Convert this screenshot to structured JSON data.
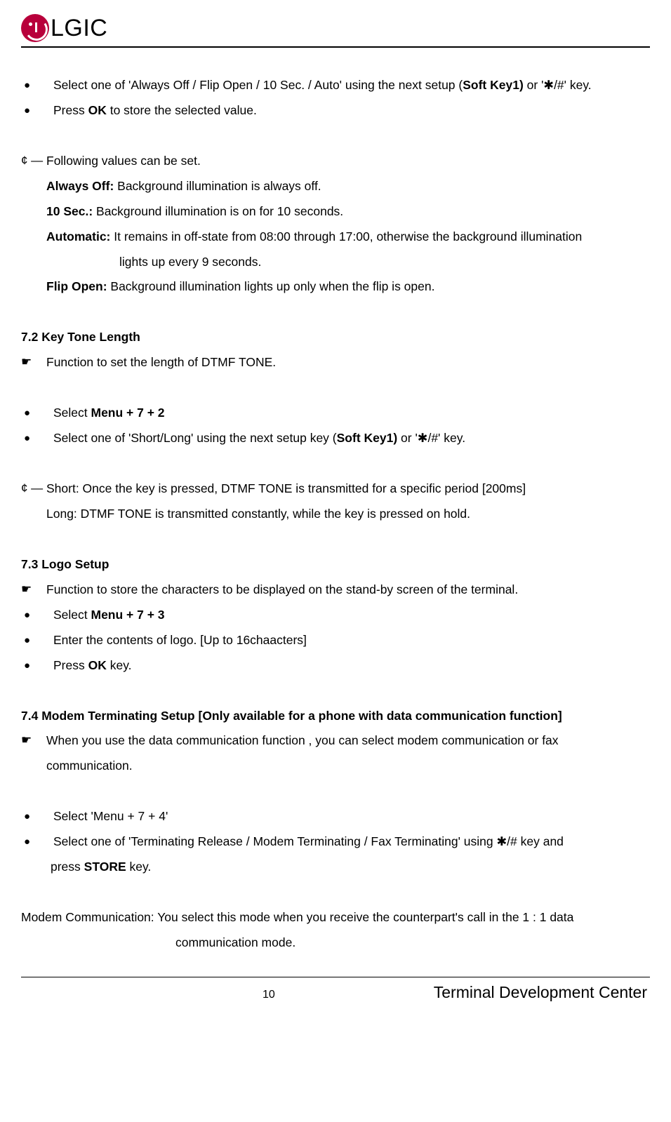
{
  "header": {
    "brand": "LGIC"
  },
  "s71": {
    "b1_pre": "Select one of '",
    "b1_opts": "Always Off / Flip Open / 10 Sec. / Auto'",
    "b1_mid": " using the next setup (",
    "b1_soft": "Soft Key1)",
    "b1_post": " or '✱/#' key.",
    "b2_pre": "Press ",
    "b2_ok": "OK",
    "b2_post": " to store the selected value.",
    "follow_sym": "¢ ―",
    "follow_txt": "Following values can be set.",
    "always_lbl": "Always Off:",
    "always_txt": " Background illumination is always off.",
    "tensec_lbl": "10 Sec.:",
    "tensec_txt": " Background illumination is on for 10 seconds.",
    "auto_lbl": "Automatic:",
    "auto_txt": " It remains in off-state from 08:00 through 17:00, otherwise the background illumination lights up every 9 seconds.",
    "auto_txt1": " It remains in off-state from 08:00 through 17:00, otherwise the background illumination",
    "auto_txt2": "lights up every 9 seconds.",
    "flip_lbl": "Flip Open:",
    "flip_txt": " Background illumination lights up only when the flip is open."
  },
  "s72": {
    "title": "7.2 Key Tone Length",
    "func": "Function to set the length of DTMF TONE.",
    "b1_pre": "Select ",
    "b1_menu": "Menu + 7 + 2",
    "b2_pre": "Select one of '",
    "b2_opts": "Short/Long'",
    "b2_mid": " using the next setup key (",
    "b2_soft": "Soft Key1)",
    "b2_post": " or '✱/#' key.",
    "cent_sym": "¢ ―",
    "short_txt": "Short: Once the key is pressed, DTMF TONE is transmitted for a specific period [200ms]",
    "long_txt": "Long: DTMF TONE is transmitted constantly, while the key is pressed on hold."
  },
  "s73": {
    "title": "7.3 Logo Setup",
    "func": "Function to store the characters to be displayed on the stand-by screen of the terminal.",
    "b1_pre": "Select ",
    "b1_menu": "Menu + 7 + 3",
    "b2": "Enter the contents of logo. [Up to 16chaacters]",
    "b3_pre": "Press ",
    "b3_ok": "OK",
    "b3_post": " key."
  },
  "s74": {
    "title": "7.4 Modem Terminating Setup [Only available for a phone with data communication function]",
    "func": "When you use the data communication function , you can select modem communication or fax communication.",
    "func1": "When you use the data communication function , you can select modem communication or fax",
    "func2": "communication.",
    "b1": "Select 'Menu + 7 + 4'",
    "b2_pre": "Select one of '",
    "b2_opts": "Terminating Release / Modem Terminating / Fax Terminating'",
    "b2_mid": " using ✱/# key and press ",
    "b2_mid1": " using ✱/# key and",
    "b2_mid2": "press ",
    "b2_store": "STORE",
    "b2_post": " key.",
    "modem1": "Modem Communication: You select this mode when you receive the counterpart's call in the 1 : 1 data",
    "modem2": "communication mode."
  },
  "footer": {
    "page": "10",
    "center": "Terminal Development Center"
  }
}
